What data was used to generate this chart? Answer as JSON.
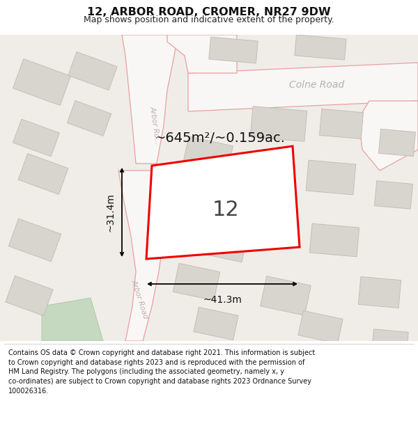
{
  "title": "12, ARBOR ROAD, CROMER, NR27 9DW",
  "subtitle": "Map shows position and indicative extent of the property.",
  "area_label": "~645m²/~0.159ac.",
  "number_label": "12",
  "dim_width": "~41.3m",
  "dim_height": "~31.4m",
  "road_label_upper": "Arbor Ro...",
  "road_label_lower": "Arbor Road",
  "road_label_colne": "Colne Road",
  "footer_line1": "Contains OS data © Crown copyright and database right 2021. This information is subject",
  "footer_line2": "to Crown copyright and database rights 2023 and is reproduced with the permission of",
  "footer_line3": "HM Land Registry. The polygons (including the associated geometry, namely x, y",
  "footer_line4": "co-ordinates) are subject to Crown copyright and database rights 2023 Ordnance Survey",
  "footer_line5": "100026316.",
  "map_bg": "#f0ede8",
  "road_fill": "#f9f7f5",
  "road_pink": "#e8a0a0",
  "building_fill": "#d8d5ce",
  "building_ec": "#c4bfb8",
  "plot_color": "#ee0000",
  "green_fill": "#c5d9c0",
  "green_ec": "#b0c8ac"
}
